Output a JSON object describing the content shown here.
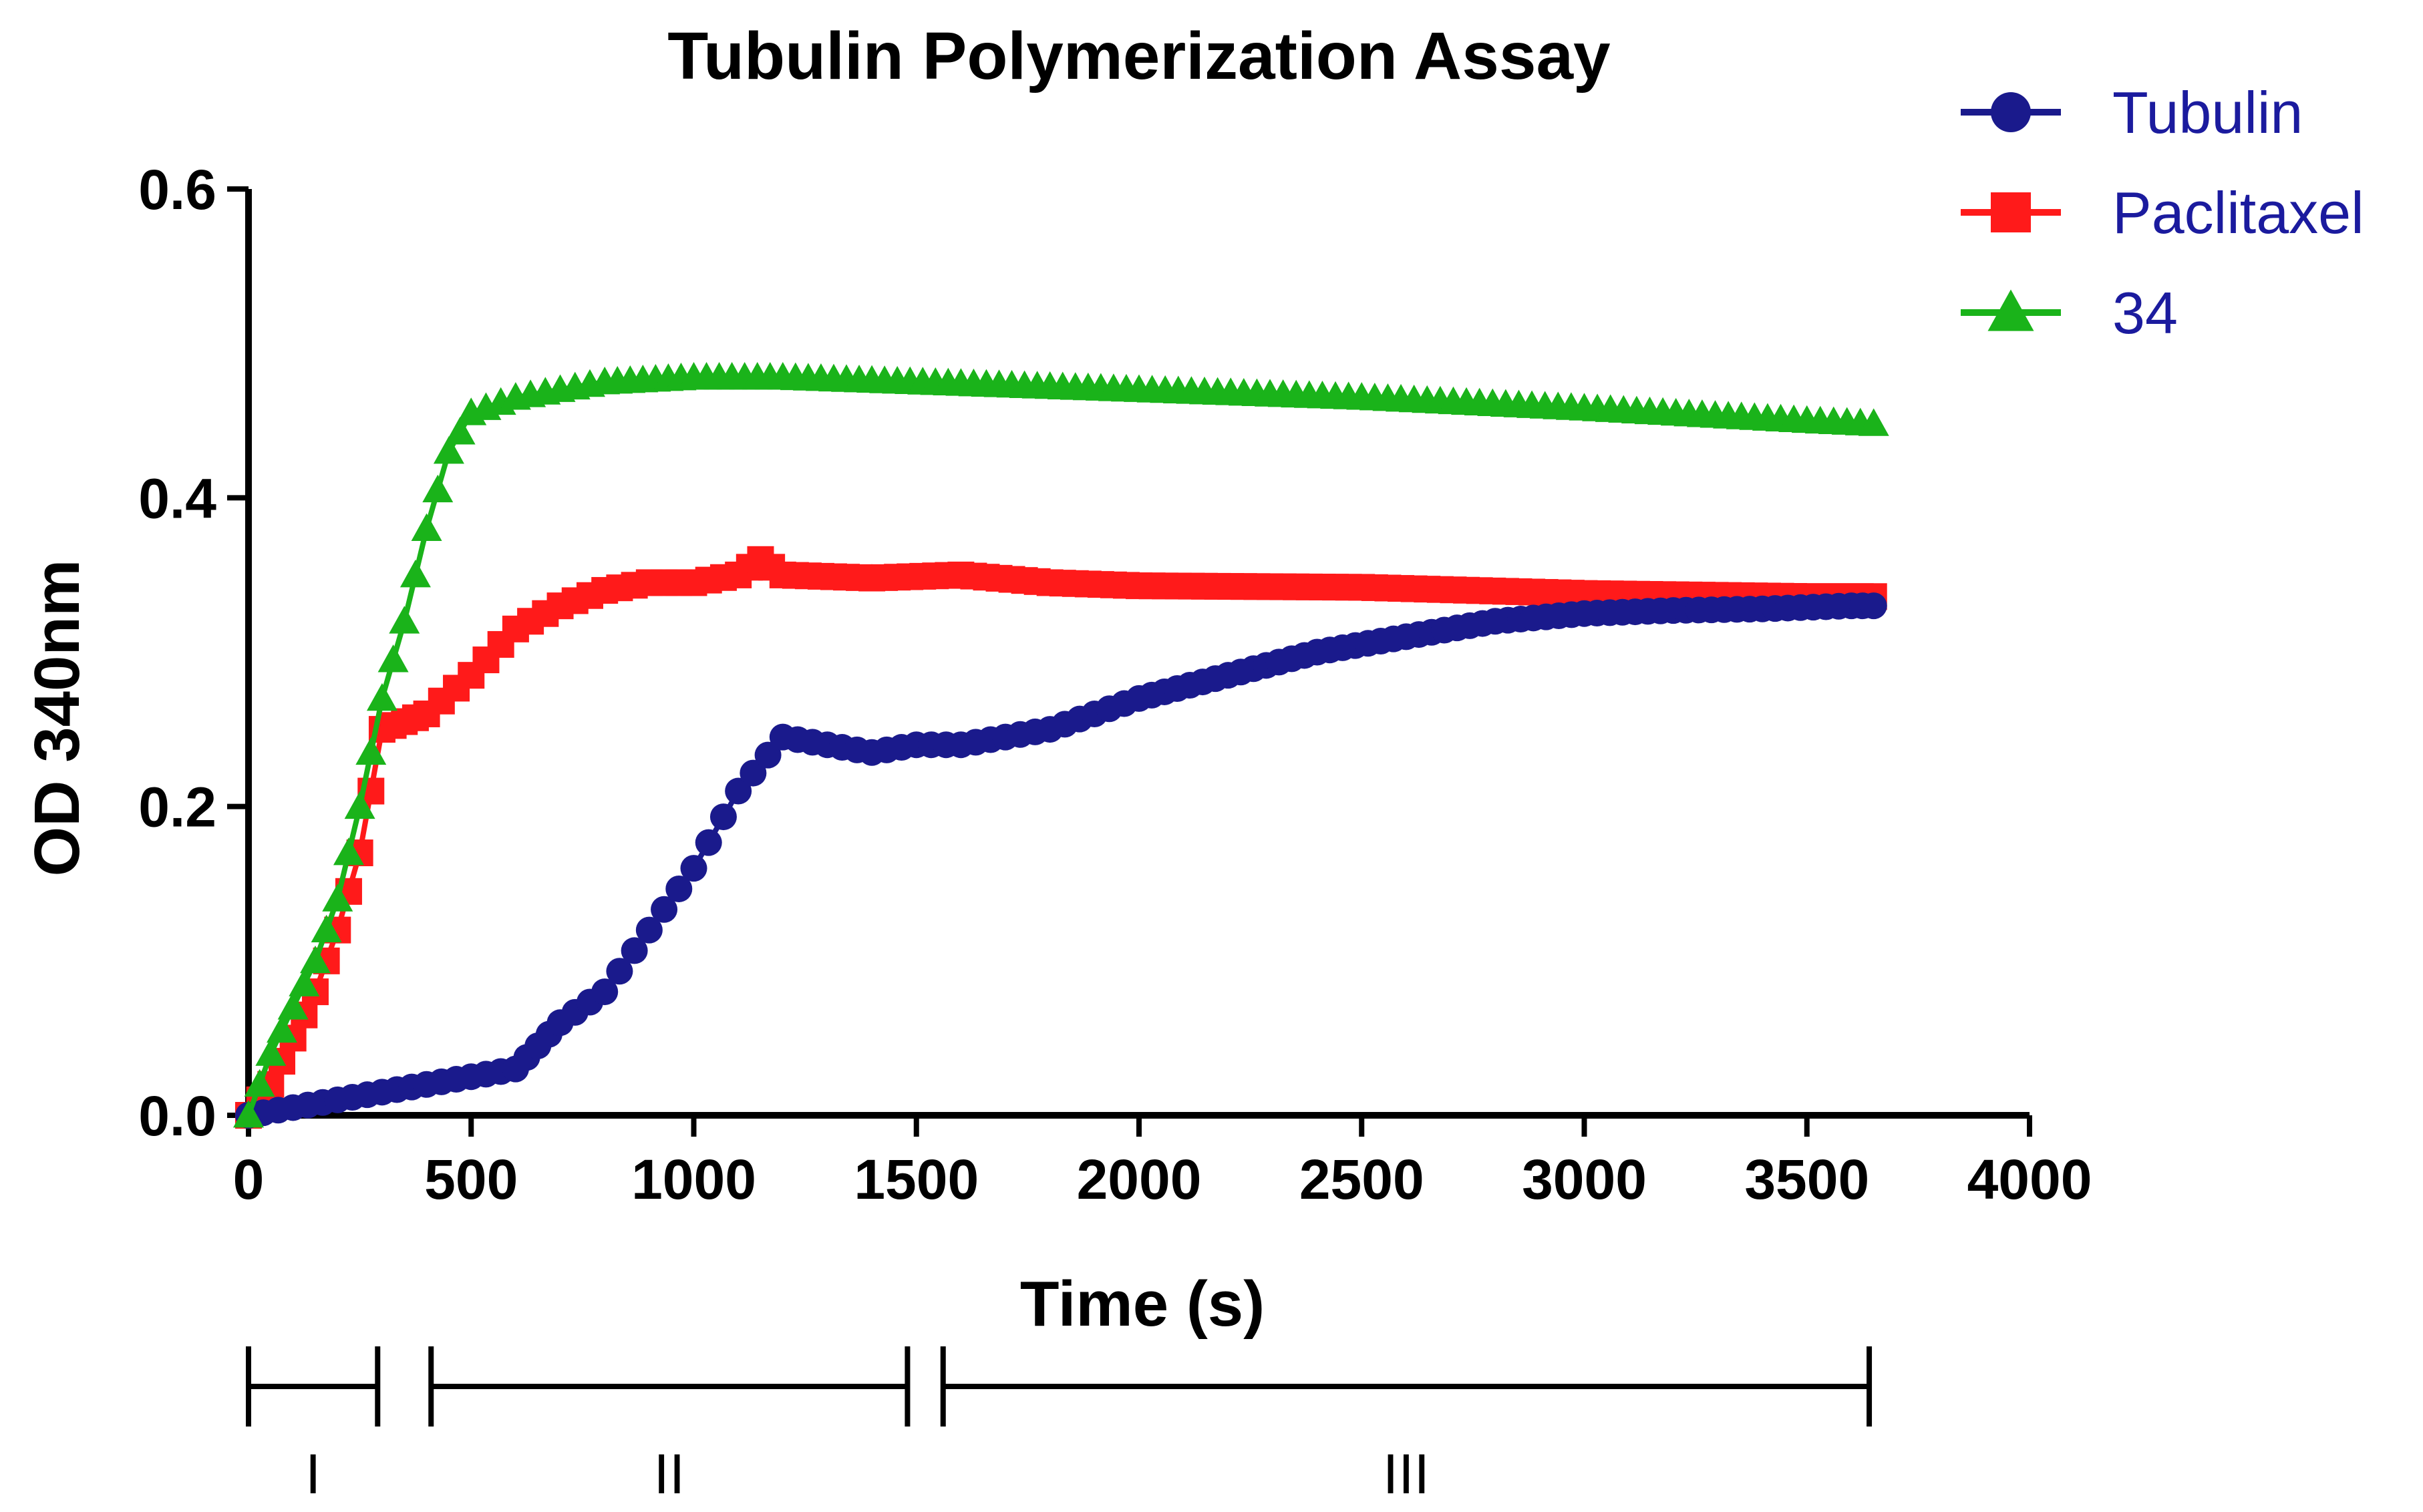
{
  "chart_data": {
    "type": "scatter",
    "title": "Tubulin Polymerization Assay",
    "xlabel": "Time (s)",
    "ylabel": "OD 340nm",
    "xlim": [
      0,
      4000
    ],
    "ylim": [
      0,
      0.6
    ],
    "xticks": [
      0,
      500,
      1000,
      1500,
      2000,
      2500,
      3000,
      3500,
      4000
    ],
    "xtick_labels": [
      "0",
      "500",
      "1000",
      "1500",
      "2000",
      "2500",
      "3000",
      "3500",
      "4000"
    ],
    "yticks": [
      0,
      0.2,
      0.4,
      0.6
    ],
    "ytick_labels": [
      "0.0",
      "0.2",
      "0.4",
      "0.6"
    ],
    "grid": false,
    "legend_position": "top-right",
    "series": [
      {
        "name": "Tubulin",
        "marker": "circle",
        "color": "#1a1a8c",
        "points": [
          [
            0,
            0.0
          ],
          [
            100,
            0.005
          ],
          [
            200,
            0.01
          ],
          [
            300,
            0.015
          ],
          [
            400,
            0.02
          ],
          [
            500,
            0.025
          ],
          [
            600,
            0.03
          ],
          [
            650,
            0.045
          ],
          [
            700,
            0.06
          ],
          [
            800,
            0.08
          ],
          [
            900,
            0.12
          ],
          [
            1000,
            0.16
          ],
          [
            1100,
            0.21
          ],
          [
            1200,
            0.245
          ],
          [
            1300,
            0.24
          ],
          [
            1400,
            0.235
          ],
          [
            1500,
            0.24
          ],
          [
            1600,
            0.24
          ],
          [
            1700,
            0.245
          ],
          [
            1800,
            0.25
          ],
          [
            1900,
            0.26
          ],
          [
            2000,
            0.27
          ],
          [
            2200,
            0.285
          ],
          [
            2400,
            0.3
          ],
          [
            2600,
            0.31
          ],
          [
            2800,
            0.32
          ],
          [
            3000,
            0.325
          ],
          [
            3200,
            0.327
          ],
          [
            3400,
            0.328
          ],
          [
            3600,
            0.33
          ],
          [
            3650,
            0.33
          ]
        ]
      },
      {
        "name": "Paclitaxel",
        "marker": "square",
        "color": "#ff1a1a",
        "points": [
          [
            0,
            0.0
          ],
          [
            50,
            0.02
          ],
          [
            100,
            0.05
          ],
          [
            150,
            0.08
          ],
          [
            200,
            0.12
          ],
          [
            250,
            0.17
          ],
          [
            300,
            0.25
          ],
          [
            350,
            0.255
          ],
          [
            400,
            0.26
          ],
          [
            500,
            0.285
          ],
          [
            600,
            0.315
          ],
          [
            700,
            0.33
          ],
          [
            800,
            0.34
          ],
          [
            900,
            0.345
          ],
          [
            1000,
            0.345
          ],
          [
            1100,
            0.35
          ],
          [
            1150,
            0.36
          ],
          [
            1200,
            0.35
          ],
          [
            1400,
            0.348
          ],
          [
            1600,
            0.35
          ],
          [
            1800,
            0.345
          ],
          [
            2000,
            0.343
          ],
          [
            2500,
            0.342
          ],
          [
            3000,
            0.338
          ],
          [
            3500,
            0.336
          ],
          [
            3650,
            0.336
          ]
        ]
      },
      {
        "name": "34",
        "marker": "triangle",
        "color": "#1ab31a",
        "points": [
          [
            0,
            0.0
          ],
          [
            50,
            0.04
          ],
          [
            100,
            0.07
          ],
          [
            150,
            0.1
          ],
          [
            200,
            0.14
          ],
          [
            250,
            0.2
          ],
          [
            300,
            0.27
          ],
          [
            350,
            0.32
          ],
          [
            400,
            0.38
          ],
          [
            450,
            0.43
          ],
          [
            500,
            0.455
          ],
          [
            600,
            0.465
          ],
          [
            700,
            0.47
          ],
          [
            800,
            0.475
          ],
          [
            1000,
            0.478
          ],
          [
            1200,
            0.478
          ],
          [
            1400,
            0.476
          ],
          [
            1600,
            0.474
          ],
          [
            1800,
            0.472
          ],
          [
            2000,
            0.47
          ],
          [
            2500,
            0.465
          ],
          [
            3000,
            0.458
          ],
          [
            3500,
            0.45
          ],
          [
            3650,
            0.448
          ]
        ]
      }
    ],
    "phases": [
      {
        "label": "I",
        "start": 0,
        "end": 290
      },
      {
        "label": "II",
        "start": 410,
        "end": 1480
      },
      {
        "label": "III",
        "start": 1560,
        "end": 3640
      }
    ]
  }
}
